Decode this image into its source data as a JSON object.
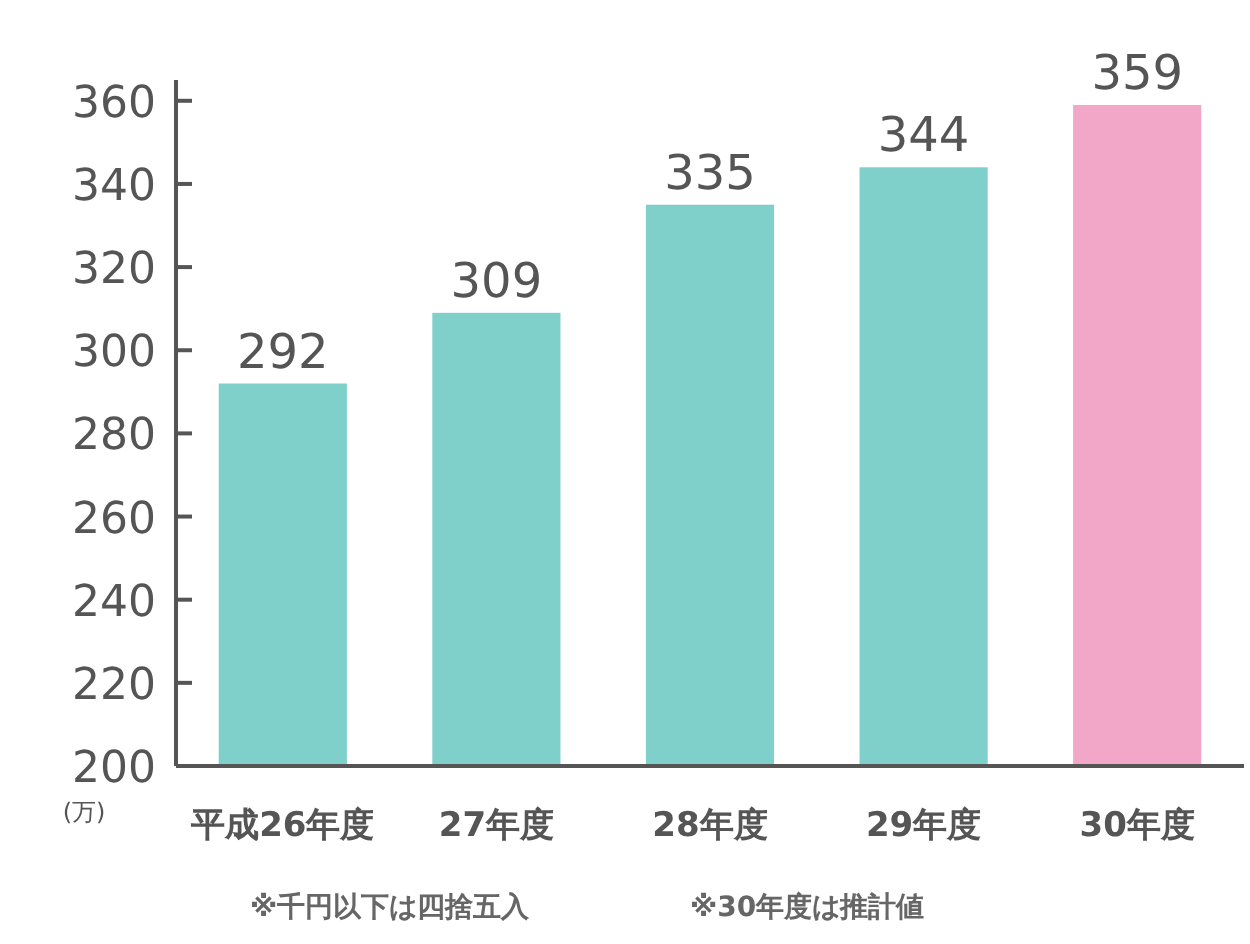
{
  "chart_data": {
    "type": "bar",
    "categories": [
      "平成26年度",
      "27年度",
      "28年度",
      "29年度",
      "30年度"
    ],
    "values": [
      292,
      309,
      335,
      344,
      359
    ],
    "colors": [
      "#7fcfcb",
      "#7fcfcb",
      "#7fcfcb",
      "#7fcfcb",
      "#f2a6c8"
    ],
    "ylim": [
      200,
      365
    ],
    "yticks": [
      200,
      220,
      240,
      260,
      280,
      300,
      320,
      340,
      360
    ],
    "ylabel": "(万)",
    "data_labels": true,
    "annotations": [
      "※千円以下は四捨五入",
      "※30年度は推計値"
    ]
  }
}
